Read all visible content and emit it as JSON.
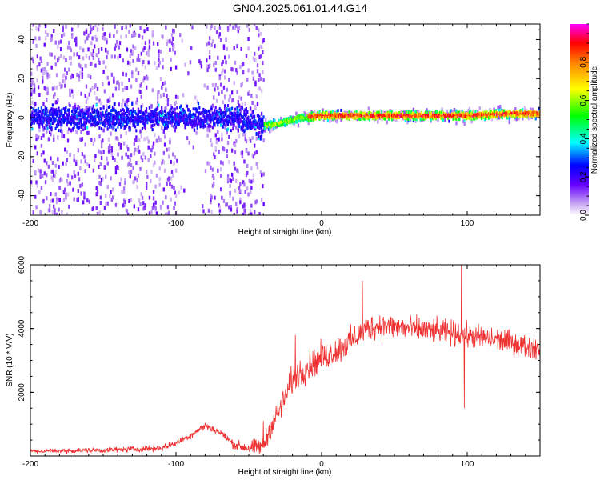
{
  "title": "GN04.2025.061.01.44.G14",
  "chart_data": [
    {
      "type": "heatmap",
      "xlabel": "Height of straight line (km)",
      "ylabel": "Frequency (Hz)",
      "xlim": [
        -200,
        150
      ],
      "ylim": [
        -50,
        48
      ],
      "xticks": [
        -200,
        -100,
        0,
        100
      ],
      "xtick_labels": [
        "-200",
        "-100",
        "0",
        "100"
      ],
      "yticks": [
        -40,
        -20,
        0,
        20,
        40
      ],
      "ytick_labels": [
        "-40",
        "-20",
        "0",
        "20",
        "40"
      ],
      "colorbar": {
        "label": "Normalized spectral amplitude",
        "range": [
          0,
          1
        ],
        "ticks": [
          0.0,
          0.2,
          0.4,
          0.6,
          0.8
        ],
        "tick_labels": [
          "0.0",
          "0.2",
          "0.4",
          "0.6",
          "0.8"
        ]
      },
      "ridge": {
        "x": [
          -200,
          -150,
          -100,
          -60,
          -45,
          -35,
          -25,
          -15,
          0,
          50,
          100,
          130,
          150
        ],
        "frequency": [
          0,
          0,
          0,
          0,
          -4,
          -4,
          -2,
          0,
          1,
          1,
          1,
          2,
          2
        ]
      },
      "grid": false
    },
    {
      "type": "line",
      "xlabel": "Height of straight line (km)",
      "ylabel": "SNR (10 * V/V)",
      "xlim": [
        -200,
        150
      ],
      "ylim": [
        0,
        6000
      ],
      "xticks": [
        -200,
        -100,
        0,
        100
      ],
      "xtick_labels": [
        "-200",
        "-100",
        "0",
        "100"
      ],
      "yticks": [
        2000,
        4000,
        6000
      ],
      "ytick_labels": [
        "2000",
        "4000",
        "6000"
      ],
      "series": [
        {
          "color": "#ee3030",
          "envelope": {
            "x": [
              -200,
              -150,
              -110,
              -100,
              -90,
              -80,
              -70,
              -60,
              -50,
              -40,
              -35,
              -25,
              -20,
              -10,
              0,
              10,
              20,
              30,
              40,
              50,
              60,
              70,
              80,
              90,
              100,
              110,
              120,
              130,
              140,
              150
            ],
            "y": [
              150,
              180,
              250,
              400,
              650,
              950,
              750,
              350,
              250,
              300,
              900,
              1800,
              2400,
              2800,
              3100,
              3300,
              3600,
              4000,
              4100,
              4050,
              4000,
              3950,
              3900,
              3850,
              3800,
              3700,
              3650,
              3550,
              3450,
              3400
            ]
          },
          "noise": {
            "x": [
              -200,
              -100,
              -60,
              -35,
              -20,
              0,
              30,
              150
            ],
            "amplitude": [
              100,
              150,
              200,
              500,
              700,
              700,
              600,
              550
            ]
          },
          "spikes": [
            {
              "x": -40,
              "y": 1100
            },
            {
              "x": -18,
              "y": 3800
            },
            {
              "x": 28,
              "y": 5500
            },
            {
              "x": 96,
              "y": 6100
            },
            {
              "x": 98,
              "y": 1500
            }
          ]
        }
      ],
      "grid": false
    }
  ]
}
